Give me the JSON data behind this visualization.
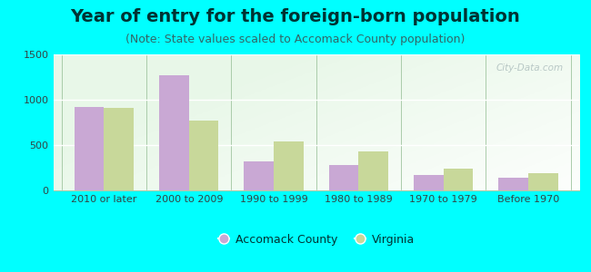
{
  "categories": [
    "2010 or later",
    "2000 to 2009",
    "1990 to 1999",
    "1980 to 1989",
    "1970 to 1979",
    "Before 1970"
  ],
  "accomack": [
    920,
    1270,
    320,
    280,
    175,
    140
  ],
  "virginia": [
    910,
    775,
    545,
    430,
    240,
    195
  ],
  "accomack_color": "#c9a8d4",
  "virginia_color": "#c8d89a",
  "title": "Year of entry for the foreign-born population",
  "subtitle": "(Note: State values scaled to Accomack County population)",
  "legend_accomack": "Accomack County",
  "legend_virginia": "Virginia",
  "ylim": [
    0,
    1500
  ],
  "yticks": [
    0,
    500,
    1000,
    1500
  ],
  "background_color": "#00ffff",
  "bar_width": 0.35,
  "title_fontsize": 14,
  "subtitle_fontsize": 9,
  "tick_fontsize": 8,
  "legend_fontsize": 9
}
